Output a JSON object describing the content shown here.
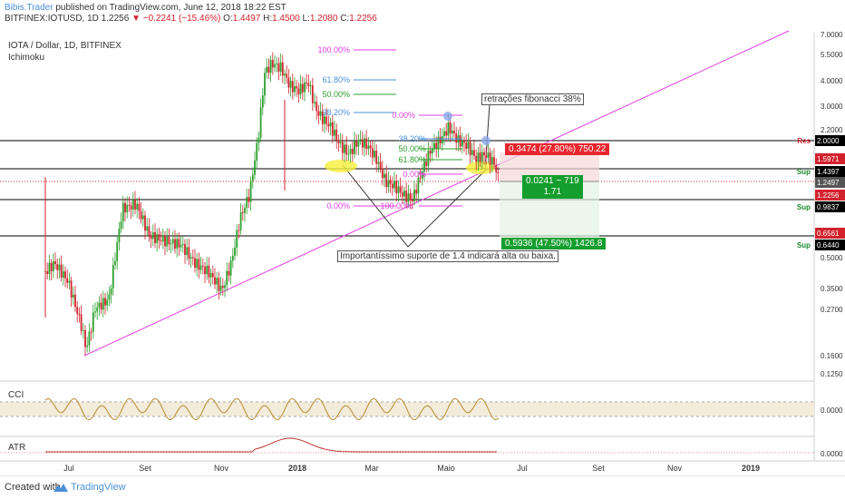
{
  "header": {
    "author": "Bibis.Trader",
    "published": "published on TradingView.com, June 12, 2018 18:22 EST",
    "symbol": "BITFINEX:IOTUSD, 1D",
    "last": "1.2256",
    "change": "−0.2241 (−15.46%)",
    "open_label": "O:",
    "open": "1.4497",
    "high_label": "H:",
    "high": "1.4500",
    "low_label": "L:",
    "low": "1.2080",
    "close_label": "C:",
    "close": "1.2256"
  },
  "pane": {
    "title": "IOTA / Dollar, 1D, BITFINEX",
    "indicator": "Ichimoku"
  },
  "cci": {
    "title": "CCI",
    "value": "0.0000"
  },
  "atr": {
    "title": "ATR",
    "value": "0.0000"
  },
  "price_axis": [
    "7.0000",
    "5.5000",
    "4.0000",
    "3.0000",
    "2.2000",
    "0.5000",
    "0.3500",
    "0.2700",
    "0.1600",
    "0.1250"
  ],
  "price_tags": [
    {
      "text": "Res",
      "value": "2.0000",
      "color": "#000000",
      "label_color": "#d2222d"
    },
    {
      "text": "",
      "value": "1.5971",
      "color": "#d2222d"
    },
    {
      "text": "Sup",
      "value": "1.4397",
      "color": "#000000",
      "label_color": "#1f8a2e"
    },
    {
      "text": "",
      "value": "1.2497",
      "color": "#555555"
    },
    {
      "text": "",
      "value": "1.2256",
      "color": "#d2222d"
    },
    {
      "text": "Sup",
      "value": "0.9837",
      "color": "#000000",
      "label_color": "#1f8a2e"
    },
    {
      "text": "",
      "value": "0.6561",
      "color": "#d2222d"
    },
    {
      "text": "Sup",
      "value": "0.6440",
      "color": "#000000",
      "label_color": "#1f8a2e"
    }
  ],
  "time_axis": [
    "Jul",
    "Set",
    "Nov",
    "2018",
    "Mar",
    "Maio",
    "Jul",
    "Set",
    "Nov",
    "2019"
  ],
  "fib_left": [
    "100.00%",
    "61.80%",
    "50.00%",
    "38.20%",
    "0.00%"
  ],
  "fib_right": [
    "0.00%",
    "100.00%",
    "38.20%",
    "50.00%",
    "61.80%",
    "0.00%"
  ],
  "fib_right_colors": [
    "#e040e0",
    "#e040e0",
    "#4a90d9",
    "#2ea02e",
    "#2ea02e",
    "#e040e0"
  ],
  "fib_left_colors": [
    "#e040e0",
    "#4a90d9",
    "#2ea02e",
    "#4a90d9",
    "#e040e0"
  ],
  "callouts": {
    "fib_note": "retrações fibonacci 38%",
    "support_note": "Importantíssimo suporte de 1.4 indicará alta ou baixa."
  },
  "position": {
    "risk": "0.3474 (27.80%) 750.22",
    "entry_line1": "0.0241 ~ 719",
    "entry_line2": "1.71",
    "reward": "0.5936 (47.50%) 1426.8"
  },
  "footer": {
    "created": "Created with",
    "brand": "TradingView"
  },
  "colors": {
    "up": "#2ea02e",
    "down": "#d2222d",
    "trend": "#e040e0",
    "blue": "#4a90d9"
  }
}
